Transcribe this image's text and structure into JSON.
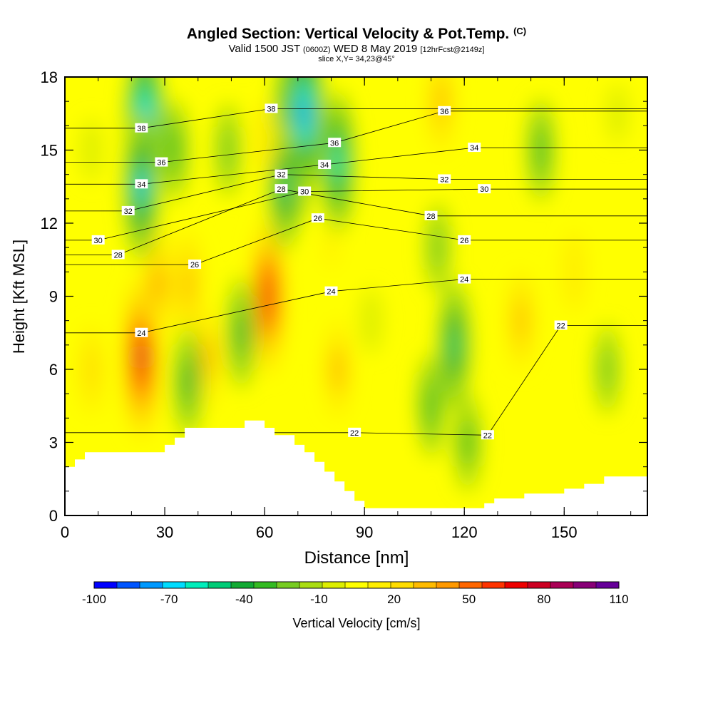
{
  "title": {
    "main": "Angled Section: Vertical Velocity & Pot.Temp.",
    "copyright": "(C)",
    "valid_prefix": "Valid 1500 JST",
    "valid_utc": "(0600Z)",
    "valid_date": "WED 8 May 2019",
    "forecast": "[12hrFcst@2149z]",
    "slice": "slice X,Y= 34,23@45°"
  },
  "chart_data": {
    "type": "heatmap",
    "xlabel": "Distance [nm]",
    "ylabel": "Height [Kft MSL]",
    "xlim": [
      0,
      175
    ],
    "ylim": [
      0,
      18
    ],
    "x_ticks": [
      0,
      30,
      60,
      90,
      120,
      150
    ],
    "y_ticks": [
      0,
      3,
      6,
      9,
      12,
      15,
      18
    ],
    "colorbar": {
      "label": "Vertical Velocity [cm/s]",
      "min": -100,
      "max": 110,
      "tick_labels": [
        "-100",
        "-70",
        "-40",
        "-10",
        "20",
        "50",
        "80",
        "110"
      ],
      "colors": [
        "#0000ff",
        "#0055ff",
        "#0099ff",
        "#00ddff",
        "#00eebb",
        "#00cc77",
        "#11aa33",
        "#33bb22",
        "#77cc22",
        "#aadd11",
        "#ddee00",
        "#ffff00",
        "#ffee00",
        "#ffdd00",
        "#ffbb00",
        "#ff9900",
        "#ff6600",
        "#ff3300",
        "#ee0000",
        "#cc0022",
        "#aa0055",
        "#880077",
        "#660099"
      ]
    },
    "vertical_velocity_cores": [
      {
        "x": 23,
        "y": 6.5,
        "value": 78
      },
      {
        "x": 61,
        "y": 9.0,
        "value": 72
      },
      {
        "x": 37,
        "y": 9.5,
        "value": 35
      },
      {
        "x": 43,
        "y": 6.5,
        "value": 28
      },
      {
        "x": 137,
        "y": 8.0,
        "value": 30
      },
      {
        "x": 28,
        "y": 9.5,
        "value": 40
      },
      {
        "x": 82,
        "y": 6.0,
        "value": 28
      },
      {
        "x": 113,
        "y": 17.0,
        "value": 32
      },
      {
        "x": 80,
        "y": 11.0,
        "value": 18
      },
      {
        "x": 153,
        "y": 10.0,
        "value": 15
      },
      {
        "x": 24,
        "y": 16.0,
        "value": -80
      },
      {
        "x": 23,
        "y": 13.5,
        "value": -65
      },
      {
        "x": 69,
        "y": 15.8,
        "value": -95
      },
      {
        "x": 72,
        "y": 16.5,
        "value": -78
      },
      {
        "x": 82,
        "y": 14.5,
        "value": -60
      },
      {
        "x": 66,
        "y": 13.5,
        "value": -50
      },
      {
        "x": 117,
        "y": 7.0,
        "value": -52
      },
      {
        "x": 110,
        "y": 4.5,
        "value": -32
      },
      {
        "x": 121,
        "y": 3.0,
        "value": -28
      },
      {
        "x": 112,
        "y": 11.0,
        "value": -22
      },
      {
        "x": 53,
        "y": 7.5,
        "value": -38
      },
      {
        "x": 37,
        "y": 5.5,
        "value": -38
      },
      {
        "x": 33,
        "y": 15.0,
        "value": -30
      },
      {
        "x": 49,
        "y": 15.0,
        "value": -25
      },
      {
        "x": 143,
        "y": 15.0,
        "value": -32
      },
      {
        "x": 163,
        "y": 6.0,
        "value": -22
      },
      {
        "x": 92,
        "y": 8.0,
        "value": -5
      },
      {
        "x": 8,
        "y": 15.0,
        "value": -3
      },
      {
        "x": 100,
        "y": 2.5,
        "value": 6
      },
      {
        "x": 60,
        "y": 15.5,
        "value": 10
      },
      {
        "x": 104,
        "y": 14.0,
        "value": 5
      },
      {
        "x": 166,
        "y": 16.5,
        "value": 0
      },
      {
        "x": 170,
        "y": 11.5,
        "value": 5
      },
      {
        "x": 8,
        "y": 6.0,
        "value": 22
      }
    ],
    "potential_temperature_contours": {
      "label_positions": [
        {
          "label": "22",
          "x": 87,
          "y": 3.4
        },
        {
          "label": "22",
          "x": 127,
          "y": 3.3
        },
        {
          "label": "22",
          "x": 149,
          "y": 7.8
        },
        {
          "label": "24",
          "x": 23,
          "y": 7.5
        },
        {
          "label": "24",
          "x": 80,
          "y": 9.2
        },
        {
          "label": "24",
          "x": 120,
          "y": 9.7
        },
        {
          "label": "26",
          "x": 39,
          "y": 10.3
        },
        {
          "label": "26",
          "x": 76,
          "y": 12.2
        },
        {
          "label": "26",
          "x": 120,
          "y": 11.3
        },
        {
          "label": "28",
          "x": 16,
          "y": 10.7
        },
        {
          "label": "28",
          "x": 65,
          "y": 13.4
        },
        {
          "label": "28",
          "x": 110,
          "y": 12.3
        },
        {
          "label": "30",
          "x": 10,
          "y": 11.3
        },
        {
          "label": "30",
          "x": 72,
          "y": 13.3
        },
        {
          "label": "30",
          "x": 126,
          "y": 13.4
        },
        {
          "label": "32",
          "x": 19,
          "y": 12.5
        },
        {
          "label": "32",
          "x": 65,
          "y": 14.0
        },
        {
          "label": "32",
          "x": 114,
          "y": 13.8
        },
        {
          "label": "34",
          "x": 23,
          "y": 13.6
        },
        {
          "label": "34",
          "x": 78,
          "y": 14.4
        },
        {
          "label": "34",
          "x": 123,
          "y": 15.1
        },
        {
          "label": "36",
          "x": 29,
          "y": 14.5
        },
        {
          "label": "36",
          "x": 81,
          "y": 15.3
        },
        {
          "label": "36",
          "x": 114,
          "y": 16.6
        },
        {
          "label": "38",
          "x": 23,
          "y": 15.9
        },
        {
          "label": "38",
          "x": 62,
          "y": 16.7
        }
      ]
    },
    "terrain": {
      "x": [
        0,
        3,
        6,
        9,
        12,
        15,
        18,
        21,
        24,
        27,
        30,
        33,
        36,
        39,
        42,
        45,
        48,
        51,
        54,
        57,
        60,
        63,
        66,
        69,
        72,
        75,
        78,
        81,
        84,
        87,
        90,
        93,
        96,
        99,
        102,
        105,
        108,
        111,
        114,
        117,
        120,
        123,
        126,
        129,
        132,
        135,
        138,
        141,
        144,
        147,
        150,
        153,
        156,
        159,
        162,
        165,
        168,
        171,
        175
      ],
      "y": [
        2.0,
        2.3,
        2.6,
        2.6,
        2.6,
        2.6,
        2.6,
        2.6,
        2.6,
        2.6,
        2.9,
        3.2,
        3.6,
        3.6,
        3.6,
        3.6,
        3.6,
        3.6,
        3.9,
        3.9,
        3.6,
        3.3,
        3.3,
        2.9,
        2.6,
        2.2,
        1.8,
        1.4,
        1.0,
        0.6,
        0.3,
        0.3,
        0.3,
        0.3,
        0.3,
        0.3,
        0.3,
        0.3,
        0.3,
        0.3,
        0.3,
        0.3,
        0.5,
        0.7,
        0.7,
        0.7,
        0.9,
        0.9,
        0.9,
        0.9,
        1.1,
        1.1,
        1.3,
        1.3,
        1.6,
        1.6,
        1.6,
        1.6,
        1.6
      ]
    }
  }
}
